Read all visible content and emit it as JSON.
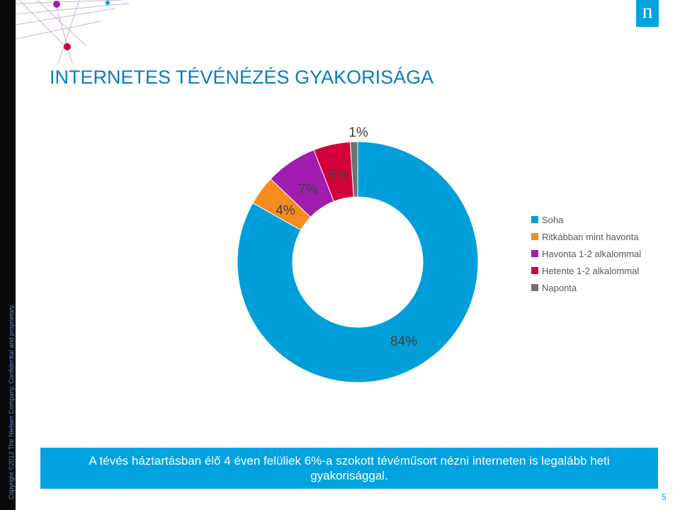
{
  "title": "INTERNETES TÉVÉNÉZÉS GYAKORISÁGA",
  "copyright": "Copyright ©2012 The Nielsen Company. Confidential and proprietary.",
  "logo_letter": "n",
  "banner_text": "A tévés háztartásban élő 4 éven felüliek 6%-a szokott tévéműsort nézni interneten is legalább heti gyakorisággal.",
  "page_number": "5",
  "chart_data": {
    "type": "pie",
    "donut": true,
    "categories": [
      "Soha",
      "Ritkábban mint havonta",
      "Havonta 1-2 alkalommal",
      "Hetente 1-2 alkalommal",
      "Naponta"
    ],
    "values": [
      84,
      4,
      7,
      5,
      1
    ],
    "value_labels": [
      "84%",
      "4%",
      "7%",
      "5%",
      "1%"
    ],
    "colors": [
      "#009fda",
      "#f68b1f",
      "#a21caf",
      "#d4003b",
      "#6f7073"
    ],
    "legend_position": "right",
    "title": ""
  }
}
